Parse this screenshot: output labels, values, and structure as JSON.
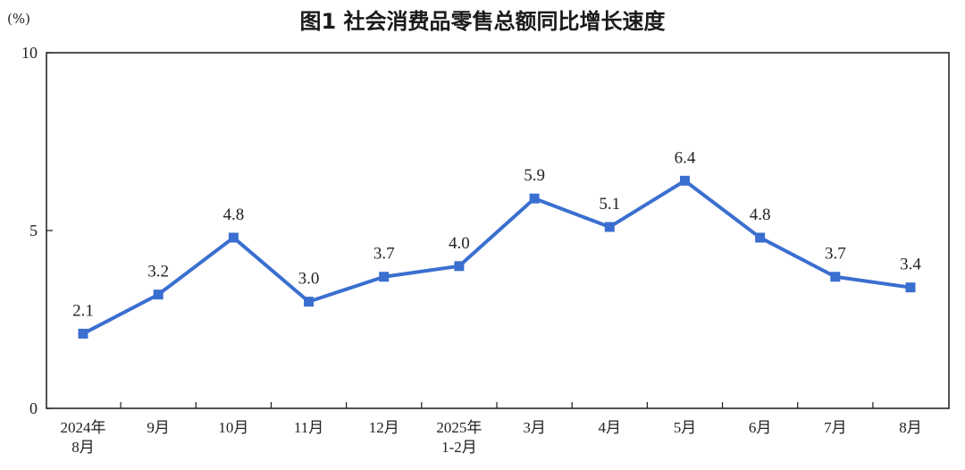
{
  "chart_data": {
    "type": "line",
    "title": "图1  社会消费品零售总额同比增长速度",
    "unit_label": "(%)",
    "categories": [
      [
        "2024年",
        "8月"
      ],
      [
        "9月"
      ],
      [
        "10月"
      ],
      [
        "11月"
      ],
      [
        "12月"
      ],
      [
        "2025年",
        "1-2月"
      ],
      [
        "3月"
      ],
      [
        "4月"
      ],
      [
        "5月"
      ],
      [
        "6月"
      ],
      [
        "7月"
      ],
      [
        "8月"
      ]
    ],
    "values": [
      2.1,
      3.2,
      4.8,
      3.0,
      3.7,
      4.0,
      5.9,
      5.1,
      6.4,
      4.8,
      3.7,
      3.4
    ],
    "data_labels": [
      "2.1",
      "3.2",
      "4.8",
      "3.0",
      "3.7",
      "4.0",
      "5.9",
      "5.1",
      "6.4",
      "4.8",
      "3.7",
      "3.4"
    ],
    "ylim": [
      0,
      10
    ],
    "yticks": [
      0,
      5,
      10
    ],
    "ytick_labels": [
      "0",
      "5",
      "10"
    ],
    "grid": false,
    "line_color": "#3a6fd0",
    "frame_color": "#1a1a1a"
  }
}
